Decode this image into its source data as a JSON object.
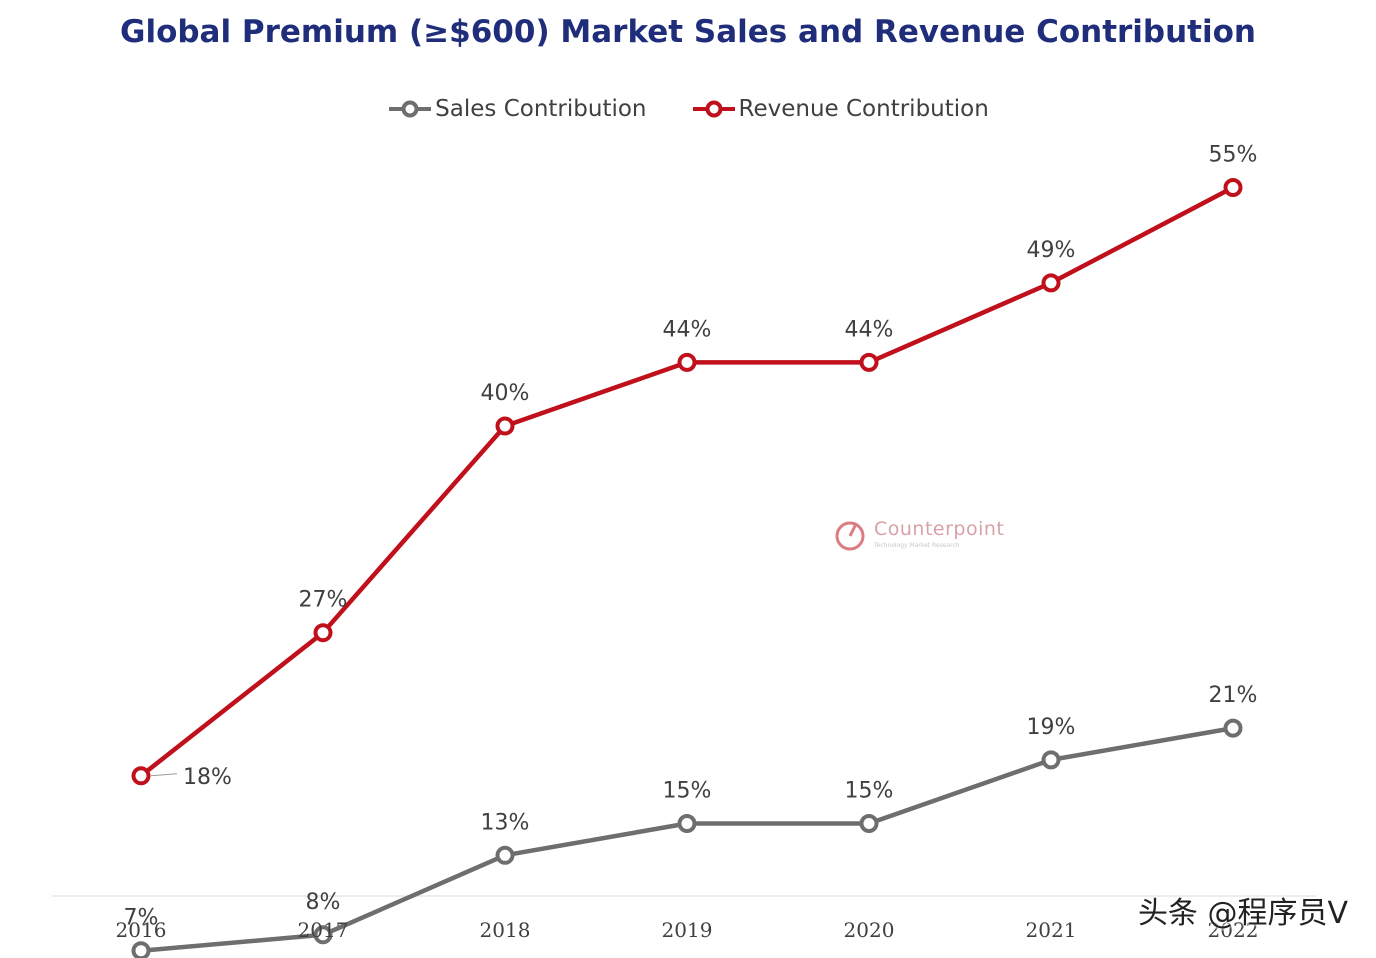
{
  "chart_data": {
    "type": "line",
    "title": "Global Premium (≥$600) Market Sales and Revenue Contribution",
    "categories": [
      "2016",
      "2017",
      "2018",
      "2019",
      "2020",
      "2021",
      "2022"
    ],
    "series": [
      {
        "name": "Sales Contribution",
        "color": "#6e6e6e",
        "values": [
          7,
          8,
          13,
          15,
          15,
          19,
          21
        ],
        "labels": [
          "7%",
          "8%",
          "13%",
          "15%",
          "15%",
          "19%",
          "21%"
        ]
      },
      {
        "name": "Revenue Contribution",
        "color": "#c0101c",
        "values": [
          18,
          27,
          40,
          44,
          44,
          49,
          55
        ],
        "labels": [
          "18%",
          "27%",
          "40%",
          "44%",
          "44%",
          "49%",
          "55%"
        ]
      }
    ],
    "xlabel": "",
    "ylabel": "",
    "ylim": [
      0,
      60
    ],
    "grid": false,
    "legend_position": "top-center"
  },
  "watermark": {
    "brand": "Counterpoint",
    "tagline": "Technology Market Research",
    "color": "#c0101c"
  },
  "overlay_credit": "头条 @程序员V"
}
